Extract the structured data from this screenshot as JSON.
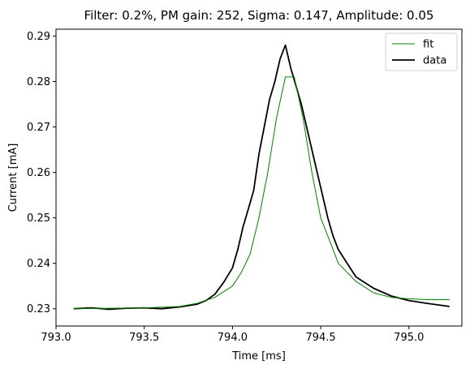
{
  "chart_data": {
    "type": "line",
    "title": "Filter: 0.2%, PM gain: 252, Sigma: 0.147, Amplitude: 0.05",
    "xlabel": "Time [ms]",
    "ylabel": "Current [mA]",
    "xlim": [
      793.0,
      795.3
    ],
    "ylim": [
      0.2262,
      0.2915
    ],
    "xticks": [
      793.0,
      793.5,
      794.0,
      794.5,
      795.0
    ],
    "xtick_labels": [
      "793.0",
      "793.5",
      "794.0",
      "794.5",
      "795.0"
    ],
    "yticks": [
      0.23,
      0.24,
      0.25,
      0.26,
      0.27,
      0.28,
      0.29
    ],
    "ytick_labels": [
      "0.23",
      "0.24",
      "0.25",
      "0.26",
      "0.27",
      "0.28",
      "0.29"
    ],
    "legend_position": "top-right",
    "grid": false,
    "series": [
      {
        "name": "fit",
        "color": "#008000",
        "style": "thin",
        "x": [
          793.1,
          793.3,
          793.5,
          793.7,
          793.8,
          793.9,
          794.0,
          794.05,
          794.1,
          794.15,
          794.2,
          794.25,
          794.3,
          794.35,
          794.4,
          794.45,
          794.5,
          794.55,
          794.6,
          794.7,
          794.8,
          794.9,
          795.0,
          795.1,
          795.23
        ],
        "y": [
          0.23,
          0.2301,
          0.2302,
          0.2305,
          0.2312,
          0.2325,
          0.235,
          0.238,
          0.242,
          0.25,
          0.26,
          0.272,
          0.281,
          0.281,
          0.272,
          0.26,
          0.25,
          0.245,
          0.24,
          0.236,
          0.2335,
          0.2325,
          0.2322,
          0.232,
          0.232
        ]
      },
      {
        "name": "data",
        "color": "#000000",
        "style": "thick",
        "x": [
          793.1,
          793.2,
          793.3,
          793.4,
          793.5,
          793.6,
          793.7,
          793.8,
          793.85,
          793.9,
          793.95,
          794.0,
          794.03,
          794.06,
          794.09,
          794.12,
          794.15,
          794.18,
          794.21,
          794.24,
          794.27,
          794.3,
          794.33,
          794.36,
          794.39,
          794.42,
          794.45,
          794.48,
          794.51,
          794.54,
          794.57,
          794.6,
          794.65,
          794.7,
          794.8,
          794.9,
          795.0,
          795.1,
          795.23
        ],
        "y": [
          0.23,
          0.2302,
          0.2299,
          0.2301,
          0.2302,
          0.23,
          0.2304,
          0.231,
          0.2318,
          0.2332,
          0.2358,
          0.239,
          0.243,
          0.248,
          0.252,
          0.256,
          0.264,
          0.27,
          0.276,
          0.28,
          0.285,
          0.288,
          0.283,
          0.279,
          0.275,
          0.27,
          0.265,
          0.26,
          0.255,
          0.25,
          0.246,
          0.243,
          0.24,
          0.237,
          0.2345,
          0.2328,
          0.2318,
          0.2312,
          0.2305
        ]
      }
    ]
  }
}
